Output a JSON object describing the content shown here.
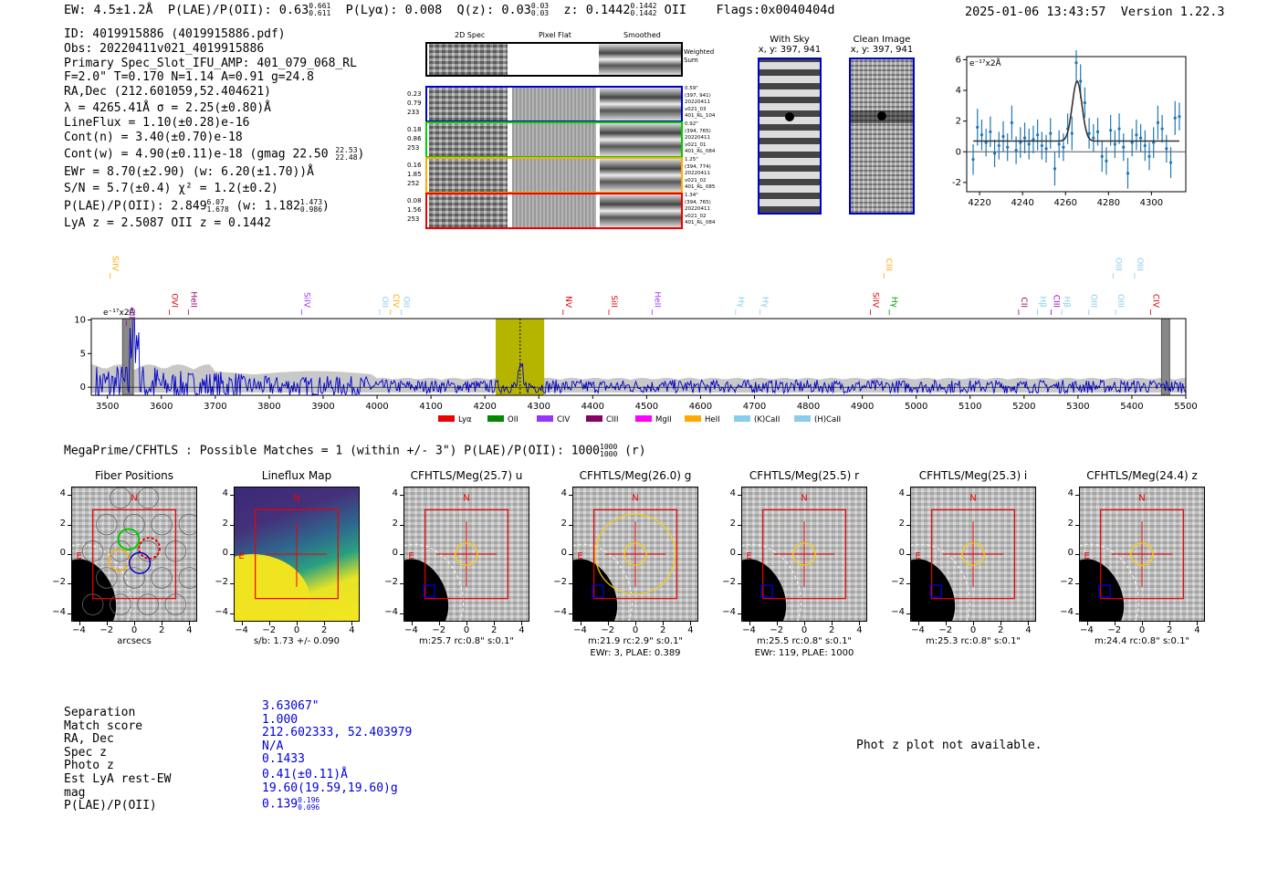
{
  "header": {
    "ew_prefix": "EW: ",
    "ew_value": "4.5±1.2Å",
    "plae_label": "P(LAE)/P(OII): ",
    "plae_value": "0.63",
    "plae_hi": "0.661",
    "plae_lo": "0.611",
    "plya_text": "P(Lyα): 0.008",
    "qz_label": "Q(z): ",
    "qz_value": "0.03",
    "qz_hi": "0.03",
    "qz_lo": "0.03",
    "z_label": "z: ",
    "z_value": "0.1442",
    "z_hi": "0.1442",
    "z_lo": "0.1442",
    "z_line": "OII",
    "flags": "Flags:0x0040404d",
    "timestamp": "2025-01-06 13:43:57",
    "version": "Version 1.22.3"
  },
  "info": {
    "id": "ID: 4019915886 (4019915886.pdf)",
    "obs": "Obs: 20220411v021_4019915886",
    "primary": "Primary Spec_Slot_IFU_AMP: 401_079_068_RL",
    "fline": "F=2.0\"  T=0.170  N=1.14  A=0.91  g=24.8",
    "radec": "RA,Dec (212.601059,52.404621)",
    "lambda": "λ = 4265.41Å  σ = 2.25(±0.80)Å",
    "lineflux": "LineFlux = 1.10(±0.28)e-16",
    "contn": "Cont(n) = 3.40(±0.70)e-18",
    "contw_text": "Cont(w) = 4.90(±0.11)e-18 (gmag 22.50",
    "contw_hi": "22.53",
    "contw_lo": "22.48",
    "contw_close": ")",
    "ewr": "EWr = 8.70(±2.90) (w: 6.20(±1.70))Å",
    "sn": "S/N = 5.7(±0.4)  χ² = 1.2(±0.2)",
    "plae_text": "P(LAE)/P(OII): 2.849",
    "plae_hi": "6.07",
    "plae_lo": "1.678",
    "plae_w": " (w: 1.182",
    "plae_w_hi": "1.473",
    "plae_w_lo": "0.986",
    "plae_close": ")",
    "lya": "LyA z = 2.5087   OII z = 0.1442"
  },
  "spec2d": {
    "col_labels": [
      "2D Spec",
      "Pixel Flat",
      "Smoothed"
    ],
    "weighted_sum": "Weighted Sum",
    "rows": [
      {
        "left": [
          "0.23",
          "0.79",
          "233"
        ],
        "right": [
          "0.59\"",
          "(397, 941)",
          "20220411",
          "v021_03",
          "401_RL_104"
        ],
        "color": "#0000cc"
      },
      {
        "left": [
          "0.18",
          "0.86",
          "253"
        ],
        "right": [
          "0.92\"",
          "(394, 765)",
          "20220411",
          "v021_01",
          "401_RL_084"
        ],
        "color": "#00cc00"
      },
      {
        "left": [
          "0.16",
          "1.85",
          "252"
        ],
        "right": [
          "1.25\"",
          "(394, 774)",
          "20220411",
          "v021_02",
          "401_RL_085"
        ],
        "color": "#ffaa00"
      },
      {
        "left": [
          "0.08",
          "1.56",
          "253"
        ],
        "right": [
          "1.34\"",
          "(394, 765)",
          "20220411",
          "v021_02",
          "401_RL_084"
        ],
        "color": "#ee0000"
      }
    ]
  },
  "sky": {
    "with_sky_title": "With Sky",
    "with_sky_xy": "x, y: 397, 941",
    "clean_title": "Clean Image",
    "clean_xy": "x, y: 397, 941"
  },
  "zoom_chart": {
    "type": "line",
    "unit_label": "e⁻¹⁷x2Å",
    "xlim": [
      4214,
      4316
    ],
    "ylim": [
      -2.6,
      6.2
    ],
    "xticks": [
      4220,
      4240,
      4260,
      4280,
      4300
    ],
    "yticks": [
      -2,
      0,
      2,
      4,
      6
    ],
    "x": [
      4217,
      4219,
      4221,
      4223,
      4225,
      4227,
      4229,
      4231,
      4233,
      4235,
      4237,
      4239,
      4241,
      4243,
      4245,
      4247,
      4249,
      4251,
      4253,
      4255,
      4257,
      4259,
      4261,
      4263,
      4265,
      4267,
      4269,
      4271,
      4273,
      4275,
      4277,
      4279,
      4281,
      4283,
      4285,
      4287,
      4289,
      4291,
      4293,
      4295,
      4297,
      4299,
      4301,
      4303,
      4305,
      4307,
      4309,
      4311,
      4313
    ],
    "y": [
      -0.5,
      1.6,
      1.1,
      0.6,
      1.3,
      -0.1,
      0.4,
      1.0,
      0.3,
      1.9,
      0.1,
      0.6,
      0.9,
      0.5,
      0.8,
      1.1,
      0.4,
      0.2,
      1.2,
      -1.1,
      0.5,
      0.3,
      1.5,
      1.2,
      5.8,
      4.6,
      3.2,
      1.2,
      0.9,
      1.3,
      -0.3,
      -0.6,
      1.4,
      0.5,
      1.5,
      0.3,
      -1.4,
      0.6,
      1.1,
      0.9,
      0.4,
      -0.3,
      0.6,
      1.9,
      1.5,
      0.2,
      -0.7,
      2.2,
      2.3
    ],
    "err": [
      1.0,
      1.2,
      1.0,
      0.9,
      1.0,
      0.9,
      0.9,
      1.0,
      0.9,
      1.1,
      0.9,
      1.0,
      1.0,
      1.0,
      0.9,
      1.0,
      0.9,
      0.9,
      1.0,
      1.1,
      0.9,
      0.9,
      1.0,
      1.1,
      1.2,
      1.1,
      1.0,
      1.0,
      0.9,
      0.9,
      1.0,
      0.9,
      1.0,
      0.9,
      1.0,
      0.9,
      1.0,
      0.9,
      1.0,
      0.9,
      1.0,
      0.9,
      1.0,
      1.1,
      0.9,
      0.9,
      1.0,
      1.1,
      0.9
    ],
    "model": {
      "continuum": 0.7,
      "center": 4265.4,
      "sigma": 2.25,
      "amp": 3.9
    }
  },
  "spectrum_chart": {
    "type": "line",
    "unit_label": "e⁻¹⁷x2Å",
    "xlim": [
      3470,
      5500
    ],
    "ylim": [
      -1.2,
      10.2
    ],
    "xticks": [
      3500,
      3600,
      3700,
      3800,
      3900,
      4000,
      4100,
      4200,
      4300,
      4400,
      4500,
      4600,
      4700,
      4800,
      4900,
      5000,
      5100,
      5200,
      5300,
      5400,
      5500
    ],
    "yticks": [
      0,
      5,
      10
    ],
    "highlight": [
      4220,
      4310
    ],
    "line_center": 4265.4,
    "masked": [
      [
        3528,
        3548
      ],
      [
        5455,
        5470
      ]
    ],
    "line_labels": [
      {
        "name": "CII",
        "x": 3535,
        "color": "#9900cc",
        "row": 2
      },
      {
        "name": "SiIV",
        "x": 3505,
        "color": "#ffaa00",
        "row": 0
      },
      {
        "name": "OVI",
        "x": 3615,
        "color": "#dd0000",
        "row": 1
      },
      {
        "name": "HeII",
        "x": 3650,
        "color": "#990066",
        "row": 1
      },
      {
        "name": "SiIV",
        "x": 3860,
        "color": "#9933ff",
        "row": 1
      },
      {
        "name": "OII",
        "x": 4005,
        "color": "#88ccee",
        "row": 1
      },
      {
        "name": "CIV",
        "x": 4025,
        "color": "#ffaa00",
        "row": 1
      },
      {
        "name": "OII",
        "x": 4045,
        "color": "#88ccee",
        "row": 1
      },
      {
        "name": "NV",
        "x": 4345,
        "color": "#dd0000",
        "row": 1
      },
      {
        "name": "SiII",
        "x": 4430,
        "color": "#dd0000",
        "row": 1
      },
      {
        "name": "HeII",
        "x": 4510,
        "color": "#9933ff",
        "row": 1
      },
      {
        "name": "Hγ",
        "x": 4665,
        "color": "#88ccee",
        "row": 1
      },
      {
        "name": "Hγ",
        "x": 4710,
        "color": "#88ccee",
        "row": 1
      },
      {
        "name": "SiIV",
        "x": 4915,
        "color": "#dd0000",
        "row": 1
      },
      {
        "name": "CIII",
        "x": 4940,
        "color": "#ffaa00",
        "row": 0
      },
      {
        "name": "Hγ",
        "x": 4950,
        "color": "#009900",
        "row": 1
      },
      {
        "name": "CII",
        "x": 5190,
        "color": "#990066",
        "row": 1
      },
      {
        "name": "Hβ",
        "x": 5225,
        "color": "#88ccee",
        "row": 1
      },
      {
        "name": "CIII",
        "x": 5250,
        "color": "#9900cc",
        "row": 1
      },
      {
        "name": "Hβ",
        "x": 5270,
        "color": "#88ccee",
        "row": 1
      },
      {
        "name": "OIII",
        "x": 5320,
        "color": "#88ccee",
        "row": 1
      },
      {
        "name": "OIII",
        "x": 5365,
        "color": "#88ccee",
        "row": 0
      },
      {
        "name": "OIII",
        "x": 5370,
        "color": "#88ccee",
        "row": 1
      },
      {
        "name": "OIII",
        "x": 5405,
        "color": "#88ccee",
        "row": 0
      },
      {
        "name": "CIV",
        "x": 5435,
        "color": "#dd0000",
        "row": 1
      }
    ],
    "legend": [
      {
        "name": "Lyα",
        "color": "#ee0000"
      },
      {
        "name": "OII",
        "color": "#008800"
      },
      {
        "name": "CIV",
        "color": "#9933ff"
      },
      {
        "name": "CIII",
        "color": "#880066"
      },
      {
        "name": "MgII",
        "color": "#ff00ff"
      },
      {
        "name": "HeII",
        "color": "#ffaa00"
      },
      {
        "name": "(K)CaII",
        "color": "#88ccee"
      },
      {
        "name": "(H)CaII",
        "color": "#88ccee"
      }
    ]
  },
  "megaprime": {
    "line_text": "MegaPrime/CFHTLS : Possible Matches = 1 (within +/- 3\")  P(LAE)/P(OII): 1000",
    "hi": "1000",
    "lo": "1000",
    "suffix": " (r)"
  },
  "cutouts": [
    {
      "title": "Fiber Positions",
      "caption1": "arcsecs",
      "caption2": "",
      "kind": "fiber"
    },
    {
      "title": "Lineflux Map",
      "caption1": "s/b: 1.73 +/- 0.090",
      "caption2": "",
      "kind": "lineflux"
    },
    {
      "title": "CFHTLS/Meg(25.7) u",
      "caption1": "m:25.7 rc:0.8\"  s:0.1\"",
      "caption2": "",
      "kind": "band"
    },
    {
      "title": "CFHTLS/Meg(26.0) g",
      "caption1": "m:21.9 rc:2.9\"  s:0.1\"",
      "caption2": "EWr: 3, PLAE: 0.389",
      "kind": "band-g"
    },
    {
      "title": "CFHTLS/Meg(25.5) r",
      "caption1": "m:25.5 rc:0.8\"  s:0.1\"",
      "caption2": "EWr: 119, PLAE: 1000",
      "kind": "band"
    },
    {
      "title": "CFHTLS/Meg(25.3) i",
      "caption1": "m:25.3 rc:0.8\"  s:0.1\"",
      "caption2": "",
      "kind": "band"
    },
    {
      "title": "CFHTLS/Meg(24.4) z",
      "caption1": "m:24.4 rc:0.8\"  s:0.1\"",
      "caption2": "",
      "kind": "band"
    }
  ],
  "cutout_axes": {
    "ticks": [
      "−4",
      "−2",
      "0",
      "2",
      "4"
    ],
    "yticks": [
      "4",
      "2",
      "0",
      "−2",
      "−4"
    ],
    "north": "N",
    "east": "E"
  },
  "match": {
    "labels": [
      "Separation",
      "Match score",
      "RA, Dec",
      "Spec z",
      "Photo z",
      "Est LyA rest-EW",
      "mag",
      "P(LAE)/P(OII)"
    ],
    "values": [
      "3.63067\"",
      "1.000",
      "212.602333, 52.403979",
      "N/A",
      "0.1433",
      "0.41(±0.11)Å",
      "19.60(19.59,19.60)g",
      "0.139"
    ],
    "plae_hi": "0.196",
    "plae_lo": "0.096"
  },
  "photz_msg": "Phot z plot not available."
}
